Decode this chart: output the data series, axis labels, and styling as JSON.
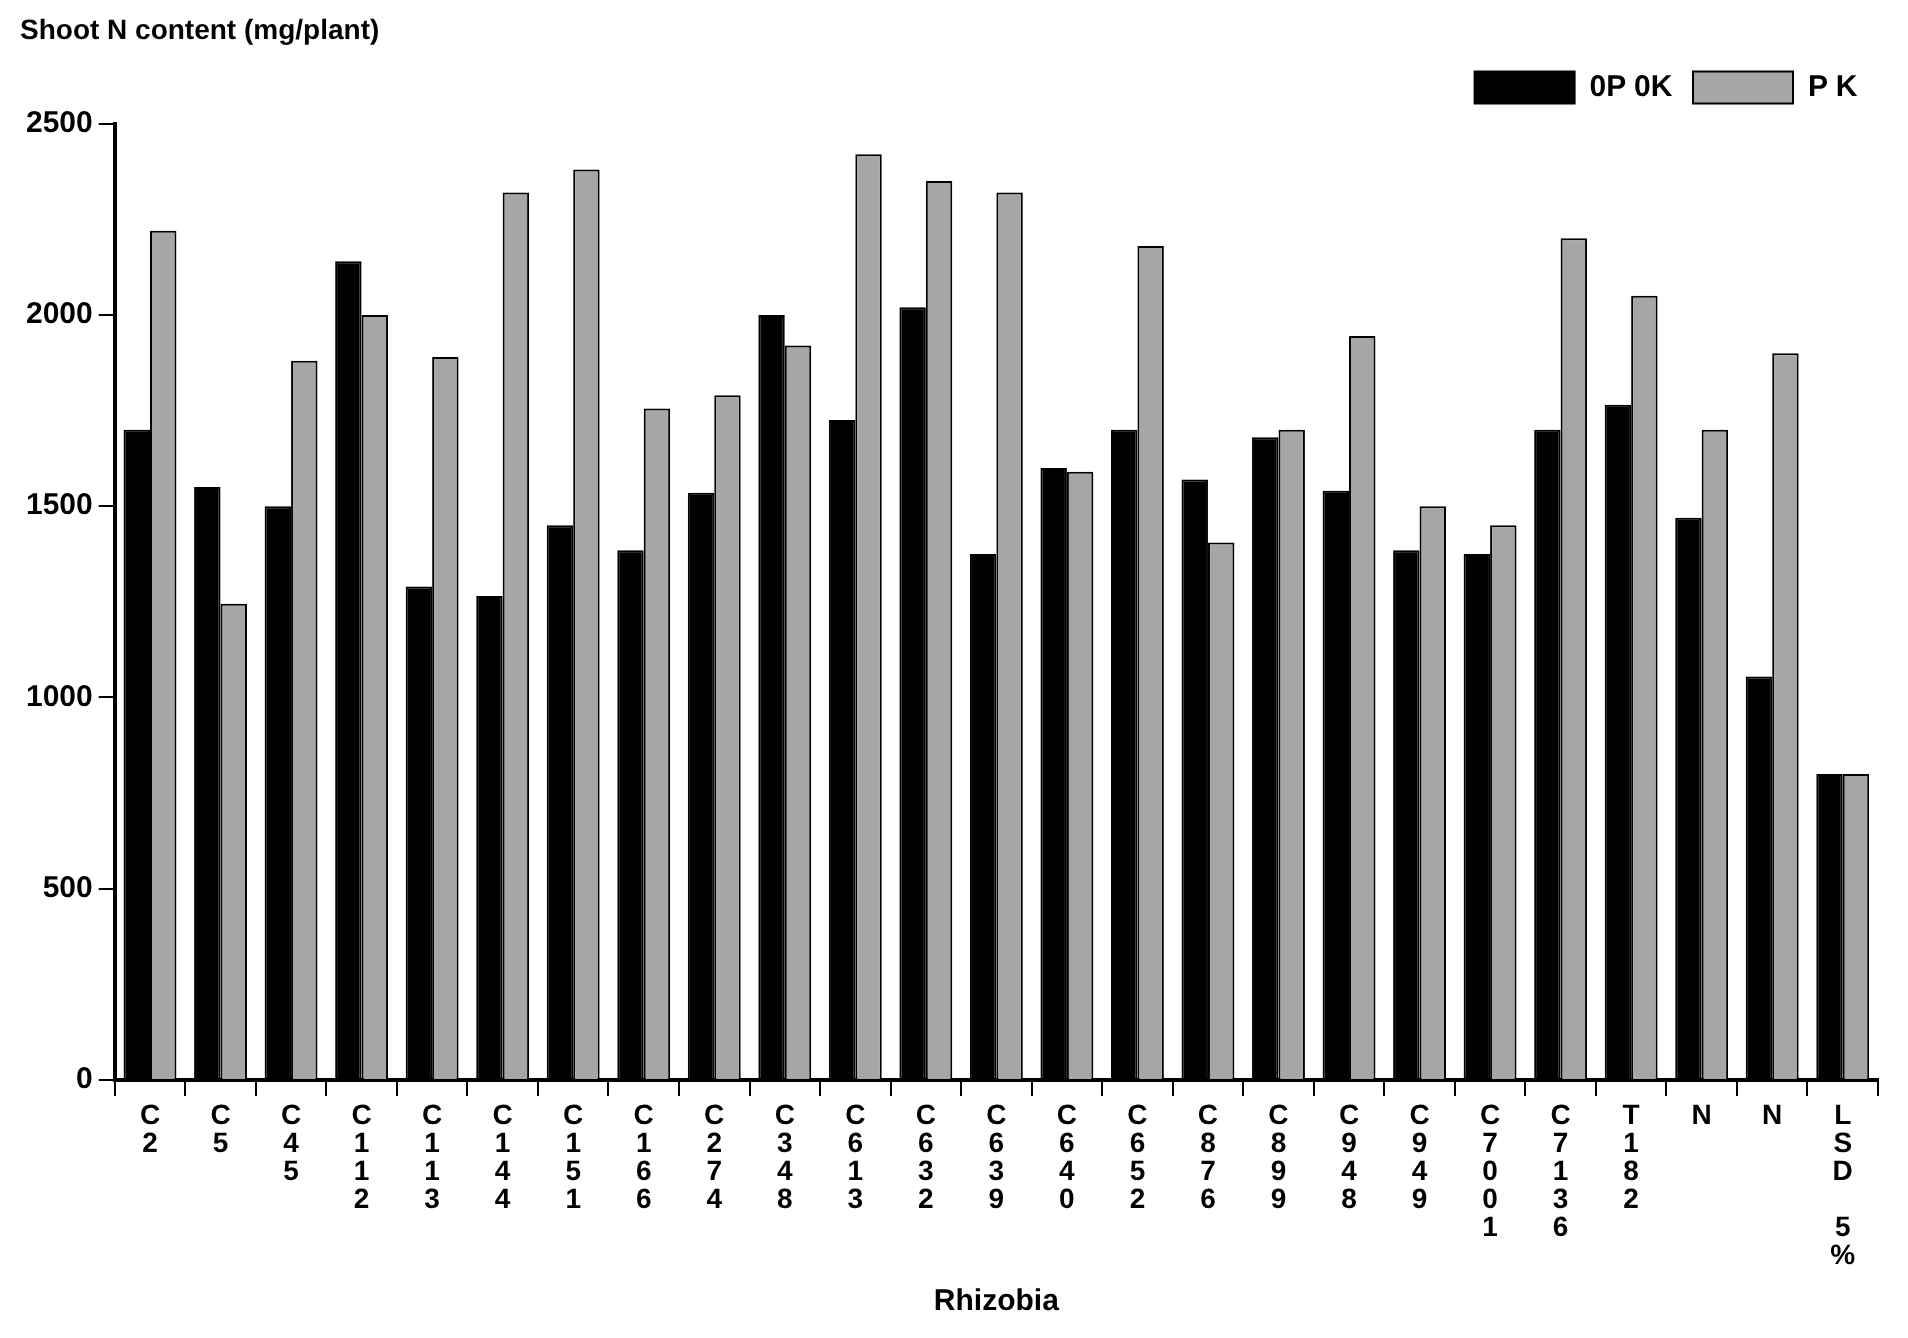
{
  "chart_data": {
    "type": "bar",
    "ylabel": "Shoot N content (mg/plant)",
    "xlabel": "Rhizobia",
    "categories": [
      "C2",
      "C5",
      "C45",
      "C112",
      "C113",
      "C144",
      "C151",
      "C166",
      "C274",
      "C348",
      "C613",
      "C632",
      "C639",
      "C640",
      "C652",
      "C876",
      "C899",
      "C948",
      "C949",
      "C7001",
      "C7136",
      "T182",
      "N",
      "N",
      "LSD 5%"
    ],
    "series": [
      {
        "name": "0P 0K",
        "color": "#000000",
        "values": [
          1700,
          1550,
          1500,
          2140,
          1290,
          1265,
          1450,
          1385,
          1535,
          2000,
          1725,
          2020,
          1375,
          1600,
          1700,
          1570,
          1680,
          1540,
          1385,
          1375,
          1700,
          1765,
          1470,
          1055,
          800
        ]
      },
      {
        "name": "P K",
        "color": "#a6a6a6",
        "values": [
          2220,
          1245,
          1880,
          2000,
          1890,
          2320,
          2380,
          1755,
          1790,
          1920,
          2420,
          2350,
          2320,
          1590,
          2180,
          1405,
          1700,
          1945,
          1500,
          1450,
          2200,
          2050,
          1700,
          1900,
          800
        ]
      }
    ],
    "ylim": [
      0,
      2500
    ],
    "yticks": [
      0,
      500,
      1000,
      1500,
      2000,
      2500
    ],
    "grid": false,
    "legend": "top right"
  }
}
